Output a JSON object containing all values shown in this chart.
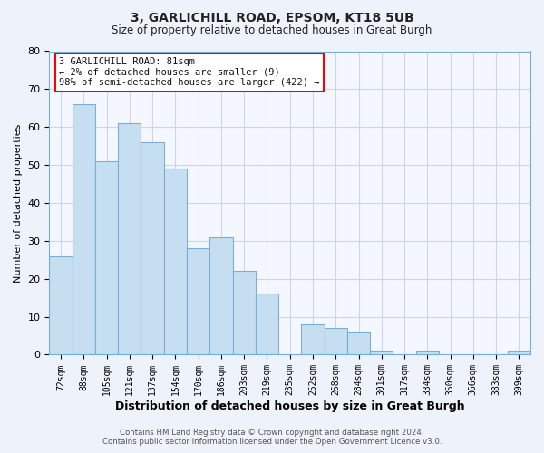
{
  "title": "3, GARLICHILL ROAD, EPSOM, KT18 5UB",
  "subtitle": "Size of property relative to detached houses in Great Burgh",
  "xlabel": "Distribution of detached houses by size in Great Burgh",
  "ylabel": "Number of detached properties",
  "footer_line1": "Contains HM Land Registry data © Crown copyright and database right 2024.",
  "footer_line2": "Contains public sector information licensed under the Open Government Licence v3.0.",
  "bin_labels": [
    "72sqm",
    "88sqm",
    "105sqm",
    "121sqm",
    "137sqm",
    "154sqm",
    "170sqm",
    "186sqm",
    "203sqm",
    "219sqm",
    "235sqm",
    "252sqm",
    "268sqm",
    "284sqm",
    "301sqm",
    "317sqm",
    "334sqm",
    "350sqm",
    "366sqm",
    "383sqm",
    "399sqm"
  ],
  "bar_values": [
    26,
    66,
    51,
    61,
    56,
    49,
    28,
    31,
    22,
    16,
    0,
    8,
    7,
    6,
    1,
    0,
    1,
    0,
    0,
    0,
    1
  ],
  "bar_color": "#c5dff0",
  "bar_edge_color": "#7aafd4",
  "annotation_box_text": "3 GARLICHILL ROAD: 81sqm\n← 2% of detached houses are smaller (9)\n98% of semi-detached houses are larger (422) →",
  "ylim": [
    0,
    80
  ],
  "yticks": [
    0,
    10,
    20,
    30,
    40,
    50,
    60,
    70,
    80
  ],
  "bg_color": "#eef2fb",
  "plot_bg_color": "#f5f7ff",
  "grid_color": "#cdd5ee"
}
